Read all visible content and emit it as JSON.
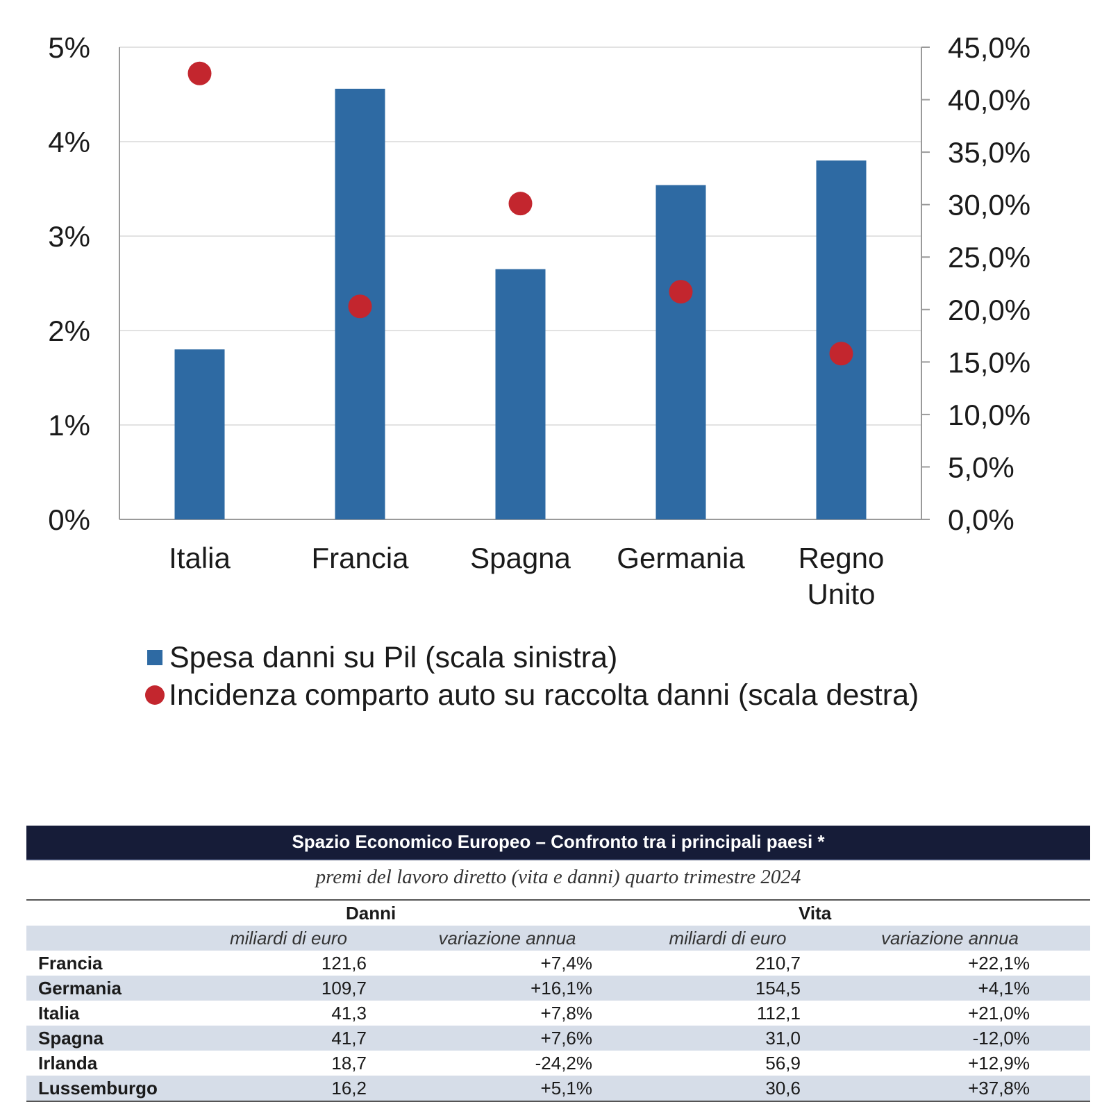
{
  "chart_data": {
    "type": "bar",
    "categories": [
      "Italia",
      "Francia",
      "Spagna",
      "Germania",
      "Regno Unito"
    ],
    "category_lines": [
      [
        "Italia"
      ],
      [
        "Francia"
      ],
      [
        "Spagna"
      ],
      [
        "Germania"
      ],
      [
        "Regno",
        "Unito"
      ]
    ],
    "series": [
      {
        "name": "Spesa danni su Pil (scala sinistra)",
        "type": "bar",
        "axis": "left",
        "color": "#2e6aa3",
        "values": [
          1.8,
          4.56,
          2.65,
          3.54,
          3.8
        ]
      },
      {
        "name": "Incidenza comparto auto su raccolta danni (scala destra)",
        "type": "scatter",
        "axis": "right",
        "color": "#c3262e",
        "values": [
          42.5,
          20.3,
          30.1,
          21.7,
          15.8
        ]
      }
    ],
    "y_left": {
      "ylim": [
        0,
        5
      ],
      "ticks": [
        "0%",
        "1%",
        "2%",
        "3%",
        "4%",
        "5%"
      ]
    },
    "y_right": {
      "ylim": [
        0,
        45
      ],
      "ticks": [
        "0,0%",
        "5,0%",
        "10,0%",
        "15,0%",
        "20,0%",
        "25,0%",
        "30,0%",
        "35,0%",
        "40,0%",
        "45,0%"
      ]
    },
    "grid": true,
    "legend": "bottom"
  },
  "table": {
    "title": "Spazio Economico Europeo – Confronto tra i principali paesi *",
    "subtitle": "premi del lavoro diretto (vita e danni) quarto trimestre 2024",
    "groups": [
      "Danni",
      "Vita"
    ],
    "units": [
      "miliardi di euro",
      "variazione annua",
      "miliardi di euro",
      "variazione annua"
    ],
    "rows": [
      {
        "country": "Francia",
        "danni_mld": "121,6",
        "danni_var": "+7,4%",
        "vita_mld": "210,7",
        "vita_var": "+22,1%"
      },
      {
        "country": "Germania",
        "danni_mld": "109,7",
        "danni_var": "+16,1%",
        "vita_mld": "154,5",
        "vita_var": "+4,1%"
      },
      {
        "country": "Italia",
        "danni_mld": "41,3",
        "danni_var": "+7,8%",
        "vita_mld": "112,1",
        "vita_var": "+21,0%"
      },
      {
        "country": "Spagna",
        "danni_mld": "41,7",
        "danni_var": "+7,6%",
        "vita_mld": "31,0",
        "vita_var": "-12,0%"
      },
      {
        "country": "Irlanda",
        "danni_mld": "18,7",
        "danni_var": "-24,2%",
        "vita_mld": "56,9",
        "vita_var": "+12,9%"
      },
      {
        "country": "Lussemburgo",
        "danni_mld": "16,2",
        "danni_var": "+5,1%",
        "vita_mld": "30,6",
        "vita_var": "+37,8%"
      }
    ]
  }
}
